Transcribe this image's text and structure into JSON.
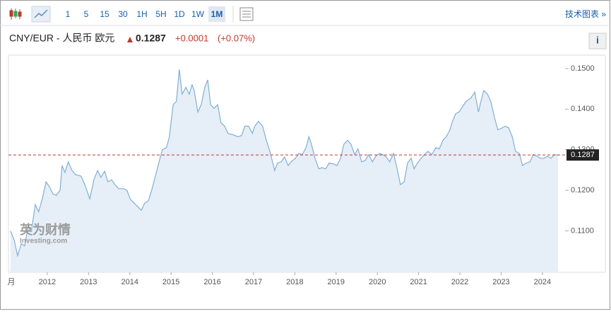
{
  "toolbar": {
    "intervals": [
      "1",
      "5",
      "15",
      "30",
      "1H",
      "5H",
      "1D",
      "1W",
      "1M"
    ],
    "active_interval": 8,
    "link": "技术图表 »"
  },
  "header": {
    "pair": "CNY/EUR - 人民币 欧元",
    "price": "0.1287",
    "change": "+0.0001",
    "change_pct": "(+0.07%)",
    "info": "i"
  },
  "watermark": {
    "brand": "英为财情",
    "site": "Investing.com"
  },
  "chart_data": {
    "type": "area",
    "color": "#7fb0d6",
    "fill": "#e6eef7",
    "x": [
      2011.11,
      2011.2,
      2011.28,
      2011.37,
      2011.45,
      2011.54,
      2011.62,
      2011.71,
      2011.79,
      2011.88,
      2011.97,
      2012.05,
      2012.14,
      2012.22,
      2012.31,
      2012.36,
      2012.43,
      2012.51,
      2012.6,
      2012.68,
      2012.82,
      2012.91,
      2013.03,
      2013.13,
      2013.22,
      2013.3,
      2013.39,
      2013.47,
      2013.56,
      2013.64,
      2013.73,
      2013.85,
      2013.93,
      2014.02,
      2014.14,
      2014.28,
      2014.36,
      2014.45,
      2014.53,
      2014.62,
      2014.71,
      2014.79,
      2014.89,
      2014.96,
      2015.05,
      2015.13,
      2015.2,
      2015.27,
      2015.36,
      2015.44,
      2015.51,
      2015.56,
      2015.65,
      2015.73,
      2015.82,
      2015.89,
      2015.96,
      2016.04,
      2016.13,
      2016.21,
      2016.3,
      2016.38,
      2016.5,
      2016.62,
      2016.71,
      2016.79,
      2016.88,
      2016.97,
      2017.03,
      2017.12,
      2017.22,
      2017.31,
      2017.41,
      2017.51,
      2017.58,
      2017.67,
      2017.75,
      2017.84,
      2017.91,
      2018.01,
      2018.1,
      2018.18,
      2018.27,
      2018.34,
      2018.4,
      2018.49,
      2018.58,
      2018.66,
      2018.75,
      2018.83,
      2018.94,
      2019.02,
      2019.11,
      2019.19,
      2019.28,
      2019.36,
      2019.45,
      2019.53,
      2019.62,
      2019.71,
      2019.79,
      2019.88,
      2019.96,
      2020.05,
      2020.13,
      2020.22,
      2020.3,
      2020.39,
      2020.48,
      2020.56,
      2020.65,
      2020.73,
      2020.82,
      2020.89,
      2020.97,
      2021.06,
      2021.14,
      2021.23,
      2021.32,
      2021.42,
      2021.5,
      2021.59,
      2021.67,
      2021.76,
      2021.81,
      2021.9,
      2021.98,
      2022.07,
      2022.15,
      2022.27,
      2022.36,
      2022.45,
      2022.51,
      2022.58,
      2022.67,
      2022.75,
      2022.84,
      2022.92,
      2023.01,
      2023.1,
      2023.18,
      2023.27,
      2023.35,
      2023.44,
      2023.52,
      2023.61,
      2023.7,
      2023.78,
      2023.87,
      2023.95,
      2024.04,
      2024.12,
      2024.21,
      2024.29,
      2024.38
    ],
    "values": [
      0.11,
      0.1077,
      0.1039,
      0.1068,
      0.1063,
      0.1112,
      0.1104,
      0.1165,
      0.1147,
      0.1179,
      0.1221,
      0.1209,
      0.1191,
      0.1188,
      0.12,
      0.1261,
      0.1244,
      0.127,
      0.1249,
      0.1239,
      0.1235,
      0.1214,
      0.1179,
      0.1226,
      0.1249,
      0.1232,
      0.1247,
      0.1221,
      0.1226,
      0.1214,
      0.1204,
      0.1204,
      0.12,
      0.1177,
      0.1165,
      0.1151,
      0.1168,
      0.1174,
      0.12,
      0.1235,
      0.127,
      0.13,
      0.1305,
      0.1332,
      0.1411,
      0.1419,
      0.1498,
      0.1437,
      0.1454,
      0.1437,
      0.146,
      0.1446,
      0.1393,
      0.1411,
      0.1454,
      0.1472,
      0.1411,
      0.1402,
      0.1411,
      0.1367,
      0.1358,
      0.134,
      0.1337,
      0.1332,
      0.1335,
      0.1358,
      0.1358,
      0.134,
      0.1358,
      0.137,
      0.1358,
      0.1323,
      0.1291,
      0.1249,
      0.1267,
      0.127,
      0.1282,
      0.1261,
      0.127,
      0.1279,
      0.1291,
      0.1288,
      0.1305,
      0.1332,
      0.1314,
      0.1279,
      0.1253,
      0.1256,
      0.1253,
      0.1267,
      0.1265,
      0.1261,
      0.1279,
      0.1314,
      0.1323,
      0.1314,
      0.1288,
      0.1302,
      0.127,
      0.1274,
      0.1288,
      0.127,
      0.1284,
      0.1291,
      0.1288,
      0.1282,
      0.127,
      0.1291,
      0.1253,
      0.1214,
      0.1221,
      0.1267,
      0.1279,
      0.1253,
      0.1267,
      0.1279,
      0.1288,
      0.1296,
      0.1288,
      0.1305,
      0.1302,
      0.1323,
      0.1332,
      0.1349,
      0.1367,
      0.1389,
      0.1393,
      0.1407,
      0.1419,
      0.1428,
      0.1442,
      0.1393,
      0.1419,
      0.1446,
      0.1437,
      0.1419,
      0.1379,
      0.1349,
      0.1353,
      0.1358,
      0.1354,
      0.1332,
      0.1296,
      0.1291,
      0.1261,
      0.1267,
      0.127,
      0.1288,
      0.1284,
      0.1279,
      0.1279,
      0.1284,
      0.1279,
      0.1288,
      0.1287
    ],
    "last_value": 0.1287,
    "xlim": [
      2011.06,
      2024.55
    ],
    "ylim": [
      0.0998,
      0.1533
    ],
    "xticks": [
      2012,
      2013,
      2014,
      2015,
      2016,
      2017,
      2018,
      2019,
      2020,
      2021,
      2022,
      2023,
      2024
    ],
    "x_edge_label": "月",
    "yticks": [
      {
        "value": 0.11,
        "label": "0.1100"
      },
      {
        "value": 0.12,
        "label": "0.1200"
      },
      {
        "value": 0.13,
        "label": "0.1300"
      },
      {
        "value": 0.14,
        "label": "0.1400"
      },
      {
        "value": 0.15,
        "label": "0.1500"
      }
    ]
  }
}
